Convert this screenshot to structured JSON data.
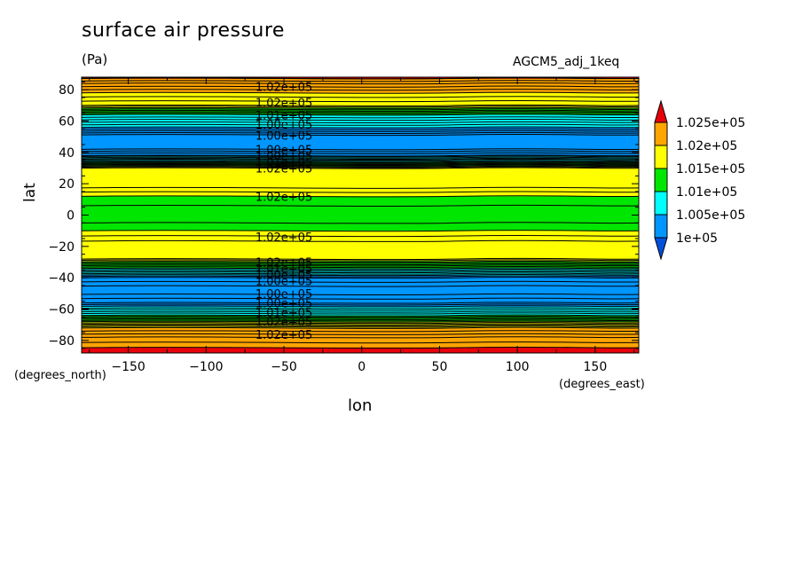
{
  "title": "surface air pressure",
  "units": "(Pa)",
  "run_name": "AGCM5_adj_1keq",
  "chart_data": {
    "type": "contour",
    "title": "surface air pressure",
    "units": "(Pa)",
    "xlabel": "lon",
    "ylabel": "lat",
    "x_unit_label": "(degrees_east)",
    "y_unit_label": "(degrees_north)",
    "xlim": [
      -180,
      178
    ],
    "ylim": [
      -88,
      88
    ],
    "xticks": [
      -150,
      -100,
      -50,
      0,
      50,
      100,
      150
    ],
    "yticks": [
      -80,
      -60,
      -40,
      -20,
      0,
      20,
      40,
      60,
      80
    ],
    "xtick_labels": [
      "−150",
      "−100",
      "−50",
      "0",
      "50",
      "100",
      "150"
    ],
    "ytick_labels": [
      "−80",
      "−60",
      "−40",
      "−20",
      "0",
      "20",
      "40",
      "60",
      "80"
    ],
    "contour_interval": 100,
    "levels": [
      100000,
      100500,
      101000,
      101500,
      102000,
      102500
    ],
    "colorbar": {
      "labels": [
        "1.025e+05",
        "1.02e+05",
        "1.015e+05",
        "1.01e+05",
        "1.005e+05",
        "1e+05"
      ],
      "colors": [
        "#e8000b",
        "#ffa500",
        "#ffff00",
        "#00e600",
        "#00ffff",
        "#0096ff",
        "#0050dc"
      ]
    },
    "latitude_profile": [
      {
        "lat": 88,
        "value": 102550
      },
      {
        "lat": 84,
        "value": 102300
      },
      {
        "lat": 78,
        "value": 102000
      },
      {
        "lat": 70,
        "value": 101700
      },
      {
        "lat": 64,
        "value": 101000
      },
      {
        "lat": 56,
        "value": 100500
      },
      {
        "lat": 50,
        "value": 100000
      },
      {
        "lat": 42,
        "value": 100100
      },
      {
        "lat": 38,
        "value": 100400
      },
      {
        "lat": 34,
        "value": 101000
      },
      {
        "lat": 30,
        "value": 101700
      },
      {
        "lat": 20,
        "value": 101800
      },
      {
        "lat": 12,
        "value": 101500
      },
      {
        "lat": 0,
        "value": 101300
      },
      {
        "lat": -10,
        "value": 101500
      },
      {
        "lat": -20,
        "value": 101800
      },
      {
        "lat": -28,
        "value": 101700
      },
      {
        "lat": -34,
        "value": 101000
      },
      {
        "lat": -40,
        "value": 100300
      },
      {
        "lat": -48,
        "value": 100000
      },
      {
        "lat": -56,
        "value": 100300
      },
      {
        "lat": -64,
        "value": 101000
      },
      {
        "lat": -72,
        "value": 102000
      },
      {
        "lat": -78,
        "value": 102300
      },
      {
        "lat": -88,
        "value": 102600
      }
    ],
    "contour_labels": [
      {
        "text": "1.02e+05",
        "lon": -50,
        "lat": 82
      },
      {
        "text": "1.02e+05",
        "lon": -50,
        "lat": 72
      },
      {
        "text": "1.01e+05",
        "lon": -50,
        "lat": 64
      },
      {
        "text": "1.00e+05",
        "lon": -50,
        "lat": 58
      },
      {
        "text": "1.00e+05",
        "lon": -50,
        "lat": 51
      },
      {
        "text": "1.00e+05",
        "lon": -50,
        "lat": 42
      },
      {
        "text": "1.00e+05",
        "lon": -50,
        "lat": 38
      },
      {
        "text": "1.01e+05",
        "lon": -50,
        "lat": 34
      },
      {
        "text": "1.02e+05",
        "lon": -50,
        "lat": 30
      },
      {
        "text": "1.02e+05",
        "lon": -50,
        "lat": 12
      },
      {
        "text": "1.02e+05",
        "lon": -50,
        "lat": -14
      },
      {
        "text": "1.02e+05",
        "lon": -50,
        "lat": -30
      },
      {
        "text": "1.01e+05",
        "lon": -50,
        "lat": -34
      },
      {
        "text": "1.00e+05",
        "lon": -50,
        "lat": -38
      },
      {
        "text": "1.00e+05",
        "lon": -50,
        "lat": -42
      },
      {
        "text": "1.00e+05",
        "lon": -50,
        "lat": -50
      },
      {
        "text": "1.00e+05",
        "lon": -50,
        "lat": -56
      },
      {
        "text": "1.01e+05",
        "lon": -50,
        "lat": -62
      },
      {
        "text": "1.02e+05",
        "lon": -50,
        "lat": -68
      },
      {
        "text": "1.02e+05",
        "lon": -50,
        "lat": -76
      }
    ]
  }
}
